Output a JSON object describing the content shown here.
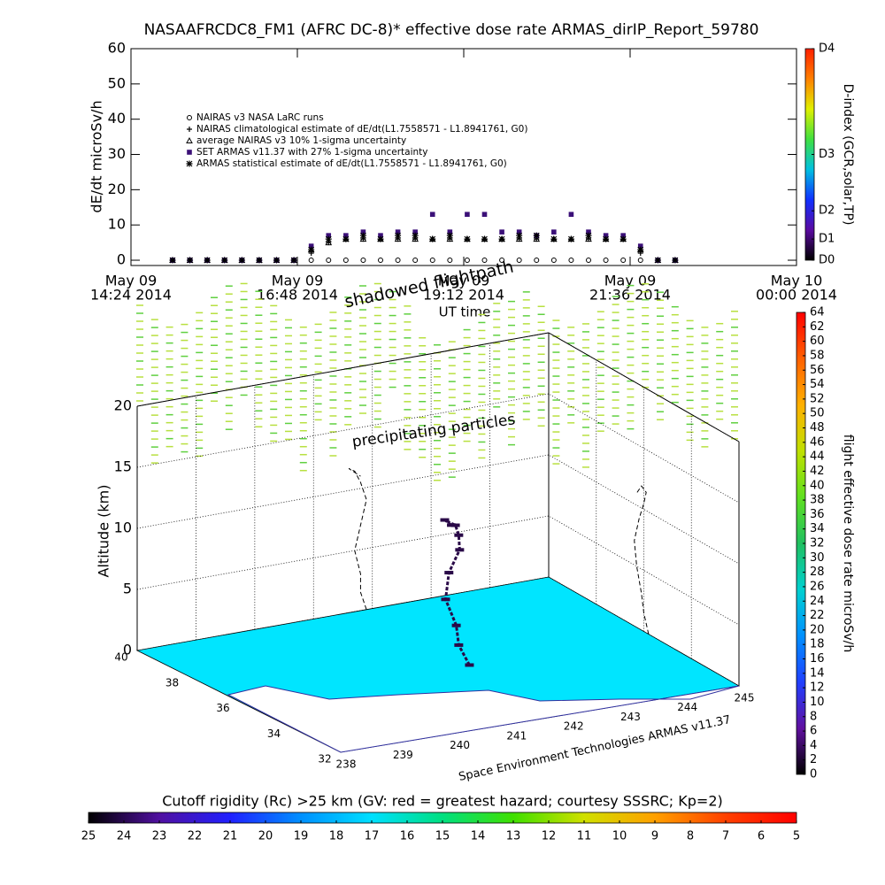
{
  "chart_data": [
    {
      "type": "scatter",
      "title": "NASAAFRCDC8_FM1 (AFRC DC-8)* effective dose rate ARMAS_dirIP_Report_59780",
      "ylabel": "dE/dt microSv/h",
      "xlabel": "UT time",
      "ylim": [
        -1.5,
        60
      ],
      "yticks": [
        0,
        10,
        20,
        30,
        40,
        50,
        60
      ],
      "xlim": [
        "2014-05-09T14:24",
        "2014-05-10T00:00"
      ],
      "xticks": [
        {
          "value": "2014-05-09T14:24",
          "label": [
            "May 09",
            "14:24 2014"
          ]
        },
        {
          "value": "2014-05-09T16:48",
          "label": [
            "May 09",
            "16:48 2014"
          ]
        },
        {
          "value": "2014-05-09T19:12",
          "label": [
            "May 09",
            "19:12 2014"
          ]
        },
        {
          "value": "2014-05-09T21:36",
          "label": [
            "May 09",
            "21:36 2014"
          ]
        },
        {
          "value": "2014-05-10T00:00",
          "label": [
            "May 10",
            "00:00 2014"
          ]
        }
      ],
      "x": [
        "2014-05-09T15:00",
        "2014-05-09T15:15",
        "2014-05-09T15:30",
        "2014-05-09T15:45",
        "2014-05-09T16:00",
        "2014-05-09T16:15",
        "2014-05-09T16:30",
        "2014-05-09T16:45",
        "2014-05-09T17:00",
        "2014-05-09T17:15",
        "2014-05-09T17:30",
        "2014-05-09T17:45",
        "2014-05-09T18:00",
        "2014-05-09T18:15",
        "2014-05-09T18:30",
        "2014-05-09T18:45",
        "2014-05-09T19:00",
        "2014-05-09T19:15",
        "2014-05-09T19:30",
        "2014-05-09T19:45",
        "2014-05-09T20:00",
        "2014-05-09T20:15",
        "2014-05-09T20:30",
        "2014-05-09T20:45",
        "2014-05-09T21:00",
        "2014-05-09T21:15",
        "2014-05-09T21:30",
        "2014-05-09T21:45",
        "2014-05-09T22:00",
        "2014-05-09T22:15"
      ],
      "series": [
        {
          "name": "NAIRAS v3 NASA LaRC runs",
          "marker": "circle",
          "color": "#000000",
          "values": [
            0,
            0,
            0,
            0,
            0,
            0,
            0,
            0,
            0,
            0,
            0,
            0,
            0,
            0,
            0,
            0,
            0,
            0,
            0,
            0,
            0,
            0,
            0,
            0,
            0,
            0,
            0,
            0,
            0,
            0
          ]
        },
        {
          "name": "NAIRAS climatological estimate of dE/dt(L1.7558571 - L1.8941761, G0)",
          "marker": "plus",
          "color": "#000000",
          "values": [
            0,
            0,
            0,
            0,
            0,
            0,
            0,
            0,
            2,
            5,
            6,
            6,
            6,
            6,
            6,
            6,
            6,
            6,
            6,
            6,
            6,
            6,
            6,
            6,
            6,
            6,
            6,
            2,
            0,
            0
          ]
        },
        {
          "name": "average NAIRAS v3 10% 1-sigma uncertainty",
          "marker": "triangle",
          "color": "#000000",
          "values": [
            0,
            0,
            0,
            0,
            0,
            0,
            0,
            0,
            3,
            5,
            6,
            6,
            6,
            6,
            6,
            6,
            6,
            6,
            6,
            6,
            6,
            6,
            6,
            6,
            6,
            6,
            6,
            3,
            0,
            0
          ]
        },
        {
          "name": "SET ARMAS v11.37 with 27% 1-sigma uncertainty",
          "marker": "square",
          "color": "#3b1078",
          "values": [
            0,
            0,
            0,
            0,
            0,
            0,
            0,
            0,
            4,
            7,
            7,
            8,
            7,
            8,
            8,
            13,
            8,
            13,
            13,
            8,
            8,
            7,
            8,
            13,
            8,
            7,
            7,
            4,
            0,
            0
          ]
        },
        {
          "name": "ARMAS statistical estimate of dE/dt(L1.7558571 - L1.8941761, G0)",
          "marker": "star",
          "color": "#000000",
          "values": [
            0,
            0,
            0,
            0,
            0,
            0,
            0,
            0,
            3,
            6,
            6,
            7,
            6,
            7,
            7,
            6,
            7,
            6,
            6,
            6,
            7,
            7,
            6,
            6,
            7,
            6,
            6,
            3,
            0,
            0
          ]
        }
      ]
    },
    {
      "type": "scatter3d",
      "zlabel": "Altitude (km)",
      "annotations": [
        "shadowed flightpath",
        "precipitating particles"
      ],
      "credit": "Space Environment Technologies ARMAS v11.37",
      "xlim": [
        238,
        245
      ],
      "xticks": [
        238,
        239,
        240,
        241,
        242,
        243,
        244,
        245
      ],
      "ylim": [
        32,
        40
      ],
      "yticks": [
        40,
        38,
        36,
        34,
        32
      ],
      "zlim": [
        0,
        20
      ],
      "zticks": [
        0,
        5,
        10,
        15,
        20
      ],
      "color": "#2a0a48",
      "floor_color": "#00e5ff",
      "x": [
        241.9,
        241.8,
        241.8,
        241.7,
        241.8,
        241.9,
        241.8,
        241.7,
        241.6,
        241.8
      ],
      "y": [
        35.8,
        36.0,
        36.1,
        36.3,
        36.4,
        36.2,
        36.0,
        35.9,
        36.1,
        36.3
      ],
      "z": [
        0,
        1.5,
        3,
        5,
        7,
        9,
        10.5,
        11.5,
        11.8,
        11.0
      ]
    },
    {
      "type": "colorbar",
      "label": "D-index (GCR,solar,TP)",
      "lim": [
        0,
        60
      ],
      "ticks": [
        {
          "value": 0,
          "label": "D0"
        },
        {
          "value": 6,
          "label": "D1"
        },
        {
          "value": 14,
          "label": "D2"
        },
        {
          "value": 30,
          "label": "D3"
        },
        {
          "value": 60,
          "label": "D4"
        }
      ],
      "colors": [
        "#000000",
        "#5a0aa0",
        "#1030ff",
        "#00c0e0",
        "#40e040",
        "#e0f000",
        "#ff8000",
        "#ff2000"
      ]
    },
    {
      "type": "colorbar",
      "label": "flight effective dose rate microSv/h",
      "lim": [
        0,
        64
      ],
      "ticks": [
        0,
        2,
        4,
        6,
        8,
        10,
        12,
        14,
        16,
        18,
        20,
        22,
        24,
        26,
        28,
        30,
        32,
        34,
        36,
        38,
        40,
        42,
        44,
        46,
        48,
        50,
        52,
        54,
        56,
        58,
        60,
        62,
        64
      ],
      "colors": [
        "#000000",
        "#6010a0",
        "#2040ff",
        "#0090ff",
        "#00d0d0",
        "#20c060",
        "#60e020",
        "#c0e000",
        "#ffb000",
        "#ff6000",
        "#ff0000"
      ]
    },
    {
      "type": "colorbar",
      "label": "Cutoff rigidity (Rc) >25 km (GV: red = greatest hazard; courtesy SSSRC; Kp=2)",
      "lim": [
        25,
        5
      ],
      "ticks": [
        25,
        24,
        23,
        22,
        21,
        20,
        19,
        18,
        17,
        16,
        15,
        14,
        13,
        12,
        11,
        10,
        9,
        8,
        7,
        6,
        5
      ],
      "colors": [
        "#000000",
        "#5010a0",
        "#2020ff",
        "#0090ff",
        "#00e0ff",
        "#00e080",
        "#40e000",
        "#d0e000",
        "#ffa000",
        "#ff4000",
        "#ff0000"
      ]
    }
  ]
}
